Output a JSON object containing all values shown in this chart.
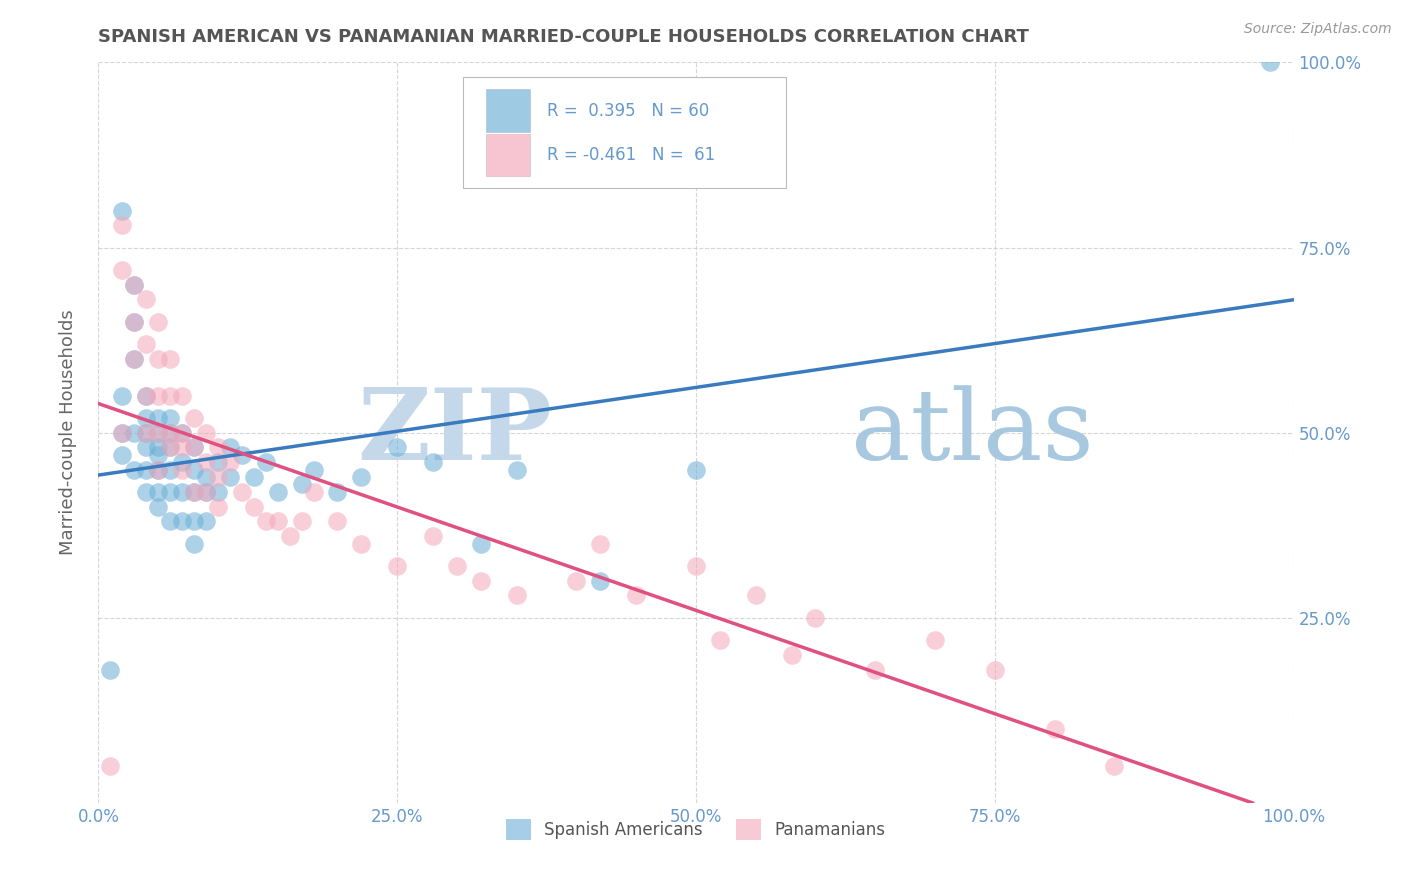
{
  "title": "SPANISH AMERICAN VS PANAMANIAN MARRIED-COUPLE HOUSEHOLDS CORRELATION CHART",
  "source": "Source: ZipAtlas.com",
  "ylabel": "Married-couple Households",
  "xlabel": "",
  "xlim": [
    0,
    1.0
  ],
  "ylim": [
    0,
    1.0
  ],
  "xtick_labels": [
    "0.0%",
    "25.0%",
    "50.0%",
    "75.0%",
    "100.0%"
  ],
  "xtick_vals": [
    0,
    0.25,
    0.5,
    0.75,
    1.0
  ],
  "ytick_labels": [
    "25.0%",
    "50.0%",
    "75.0%",
    "100.0%"
  ],
  "ytick_vals": [
    0.25,
    0.5,
    0.75,
    1.0
  ],
  "legend_label1": "Spanish Americans",
  "legend_label2": "Panamanians",
  "R1": 0.395,
  "N1": 60,
  "R2": -0.461,
  "N2": 61,
  "blue_color": "#6baed6",
  "pink_color": "#f4a7b9",
  "blue_line_color": "#3a7bbf",
  "pink_line_color": "#e05080",
  "title_color": "#555555",
  "watermark_zip_color": "#c8d8e8",
  "watermark_atlas_color": "#a8c8e0",
  "background_color": "#ffffff",
  "grid_color": "#cccccc",
  "tick_color": "#6699cc",
  "blue_scatter_x": [
    0.01,
    0.02,
    0.02,
    0.02,
    0.02,
    0.03,
    0.03,
    0.03,
    0.03,
    0.03,
    0.04,
    0.04,
    0.04,
    0.04,
    0.04,
    0.04,
    0.05,
    0.05,
    0.05,
    0.05,
    0.05,
    0.05,
    0.05,
    0.06,
    0.06,
    0.06,
    0.06,
    0.06,
    0.06,
    0.07,
    0.07,
    0.07,
    0.07,
    0.08,
    0.08,
    0.08,
    0.08,
    0.08,
    0.09,
    0.09,
    0.09,
    0.1,
    0.1,
    0.11,
    0.11,
    0.12,
    0.13,
    0.14,
    0.15,
    0.17,
    0.18,
    0.2,
    0.22,
    0.25,
    0.28,
    0.32,
    0.35,
    0.42,
    0.5,
    0.98
  ],
  "blue_scatter_y": [
    0.18,
    0.8,
    0.47,
    0.5,
    0.55,
    0.6,
    0.65,
    0.7,
    0.5,
    0.45,
    0.55,
    0.52,
    0.48,
    0.5,
    0.45,
    0.42,
    0.52,
    0.48,
    0.5,
    0.45,
    0.42,
    0.47,
    0.4,
    0.48,
    0.52,
    0.5,
    0.45,
    0.42,
    0.38,
    0.5,
    0.46,
    0.42,
    0.38,
    0.48,
    0.45,
    0.42,
    0.38,
    0.35,
    0.44,
    0.42,
    0.38,
    0.46,
    0.42,
    0.48,
    0.44,
    0.47,
    0.44,
    0.46,
    0.42,
    0.43,
    0.45,
    0.42,
    0.44,
    0.48,
    0.46,
    0.35,
    0.45,
    0.3,
    0.45,
    1.0
  ],
  "pink_scatter_x": [
    0.01,
    0.02,
    0.02,
    0.02,
    0.03,
    0.03,
    0.03,
    0.04,
    0.04,
    0.04,
    0.04,
    0.05,
    0.05,
    0.05,
    0.05,
    0.05,
    0.06,
    0.06,
    0.06,
    0.06,
    0.07,
    0.07,
    0.07,
    0.07,
    0.08,
    0.08,
    0.08,
    0.09,
    0.09,
    0.09,
    0.1,
    0.1,
    0.1,
    0.11,
    0.12,
    0.13,
    0.14,
    0.15,
    0.16,
    0.17,
    0.18,
    0.2,
    0.22,
    0.25,
    0.28,
    0.3,
    0.32,
    0.35,
    0.4,
    0.42,
    0.45,
    0.5,
    0.52,
    0.55,
    0.58,
    0.6,
    0.65,
    0.7,
    0.75,
    0.8,
    0.85
  ],
  "pink_scatter_y": [
    0.05,
    0.78,
    0.72,
    0.5,
    0.7,
    0.65,
    0.6,
    0.68,
    0.62,
    0.55,
    0.5,
    0.65,
    0.6,
    0.55,
    0.5,
    0.45,
    0.6,
    0.55,
    0.5,
    0.48,
    0.55,
    0.5,
    0.48,
    0.45,
    0.52,
    0.48,
    0.42,
    0.5,
    0.46,
    0.42,
    0.48,
    0.44,
    0.4,
    0.46,
    0.42,
    0.4,
    0.38,
    0.38,
    0.36,
    0.38,
    0.42,
    0.38,
    0.35,
    0.32,
    0.36,
    0.32,
    0.3,
    0.28,
    0.3,
    0.35,
    0.28,
    0.32,
    0.22,
    0.28,
    0.2,
    0.25,
    0.18,
    0.22,
    0.18,
    0.1,
    0.05
  ]
}
